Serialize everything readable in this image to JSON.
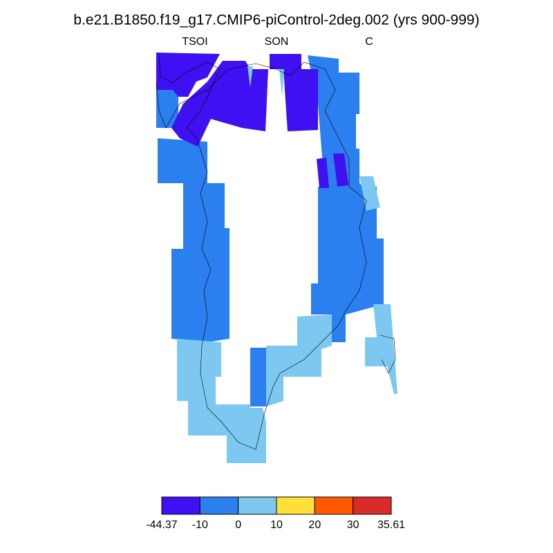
{
  "title": "b.e21.B1850.f19_g17.CMIP6-piControl-2deg.002 (yrs 900-999)",
  "left_string": "TSOI",
  "center_string": "SON",
  "right_string": "C",
  "colorbar": {
    "levels": [
      -44.37,
      -10,
      0,
      10,
      20,
      30,
      35.61
    ],
    "colors": [
      "#3f10f2",
      "#2b7fee",
      "#7cc8f0",
      "#ffe03a",
      "#ff5a00",
      "#d92b2b"
    ]
  }
}
